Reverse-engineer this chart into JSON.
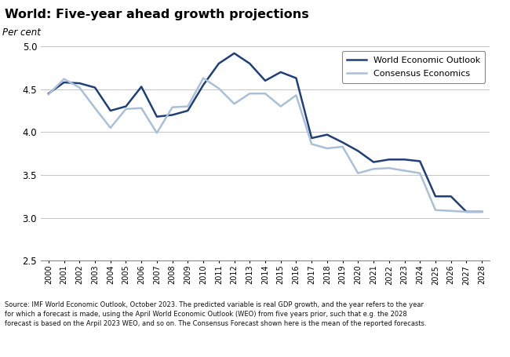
{
  "title": "World: Five-year ahead growth projections",
  "ylabel": "Per cent",
  "source_text": "Source: IMF World Economic Outlook, October 2023. The predicted variable is real GDP growth, and the year refers to the year\nfor which a forecast is made, using the April World Economic Outlook (WEO) from five years prior, such that e.g. the 2028\nforecast is based on the Arpil 2023 WEO, and so on. The Consensus Forecast shown here is the mean of the reported forecasts.",
  "ylim": [
    2.5,
    5.0
  ],
  "yticks": [
    2.5,
    3.0,
    3.5,
    4.0,
    4.5,
    5.0
  ],
  "weo_color": "#1F3F7A",
  "ce_color": "#AABFD8",
  "weo_label": "World Economic Outlook",
  "ce_label": "Consensus Economics",
  "weo_years": [
    2000,
    2001,
    2002,
    2003,
    2004,
    2005,
    2006,
    2007,
    2008,
    2009,
    2010,
    2011,
    2012,
    2013,
    2014,
    2015,
    2016,
    2017,
    2018,
    2019,
    2020,
    2021,
    2022,
    2023,
    2024,
    2025,
    2026,
    2027,
    2028
  ],
  "weo_values": [
    4.45,
    4.58,
    4.57,
    4.52,
    4.25,
    4.3,
    4.53,
    4.18,
    4.2,
    4.25,
    4.55,
    4.8,
    4.92,
    4.8,
    4.6,
    4.7,
    4.63,
    3.93,
    3.97,
    3.88,
    3.78,
    3.65,
    3.68,
    3.68,
    3.66,
    3.25,
    3.25,
    3.07,
    3.07
  ],
  "ce_years": [
    2000,
    2001,
    2002,
    2003,
    2004,
    2005,
    2006,
    2007,
    2008,
    2009,
    2010,
    2011,
    2012,
    2013,
    2014,
    2015,
    2016,
    2017,
    2018,
    2019,
    2020,
    2021,
    2022,
    2023,
    2024,
    2025,
    2026,
    2027,
    2028
  ],
  "ce_values": [
    4.44,
    4.62,
    4.52,
    4.28,
    4.05,
    4.27,
    4.28,
    3.99,
    4.29,
    4.3,
    4.63,
    4.51,
    4.33,
    4.45,
    4.45,
    4.3,
    4.43,
    3.86,
    3.81,
    3.83,
    3.52,
    3.57,
    3.58,
    3.55,
    3.52,
    3.09,
    3.08,
    3.07,
    3.07
  ]
}
